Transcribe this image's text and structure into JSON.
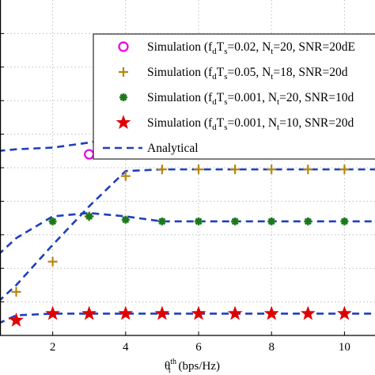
{
  "chart_data": {
    "type": "scatter",
    "xlabel": "θ_t^th (bps/Hz)",
    "xlabel_parts": {
      "base": "θ",
      "sup": "th",
      "sub": "t",
      "unit": " (bps/Hz)"
    },
    "x_ticks": [
      2,
      4,
      6,
      8,
      10
    ],
    "x_tick_labels": [
      "2",
      "4",
      "6",
      "8",
      "10"
    ],
    "xlim": [
      0.5,
      11
    ],
    "ylim": [
      0,
      10
    ],
    "y_gridlines": [
      1,
      2,
      3,
      4,
      5,
      6,
      7,
      8,
      9
    ],
    "x_gridlines": [
      2,
      4,
      6,
      8,
      10
    ],
    "grid": true,
    "legend_position": "top-right",
    "series": [
      {
        "name": "Simulation (f_dT_s=0.02, N_t=20, SNR=20dB)",
        "label_parts": [
          "Simulation (f",
          "d",
          "T",
          "s",
          "=0.02, N",
          "t",
          "=20, SNR=20dE"
        ],
        "marker": "circle-open",
        "color": "#e600e6",
        "x": [
          3,
          4,
          5,
          6,
          7,
          8,
          9,
          10
        ],
        "y": [
          5.4,
          5.7,
          6.05,
          6.1,
          6.1,
          6.1,
          6.1,
          6.1
        ]
      },
      {
        "name": "Simulation (f_dT_s=0.05, N_t=18, SNR=20dB)",
        "label_parts": [
          "Simulation (f",
          "d",
          "T",
          "s",
          "=0.05, N",
          "t",
          "=18, SNR=20d"
        ],
        "marker": "plus",
        "color": "#b8860b",
        "x": [
          1,
          2,
          3,
          4,
          5,
          6,
          7,
          8,
          9,
          10
        ],
        "y": [
          1.3,
          2.2,
          3.55,
          4.75,
          4.95,
          4.95,
          4.95,
          4.95,
          4.95,
          4.95
        ]
      },
      {
        "name": "Simulation (f_dT_s=0.001, N_t=20, SNR=10dB)",
        "label_parts": [
          "Simulation (f",
          "d",
          "T",
          "s",
          "=0.001, N",
          "t",
          "=20, SNR=10d"
        ],
        "marker": "asterisk",
        "color": "#1a7a1a",
        "x": [
          2,
          3,
          4,
          5,
          6,
          7,
          8,
          9,
          10
        ],
        "y": [
          3.4,
          3.55,
          3.45,
          3.4,
          3.4,
          3.4,
          3.4,
          3.4,
          3.4
        ]
      },
      {
        "name": "Simulation (f_dT_s=0.001, N_t=10, SNR=20dB)",
        "label_parts": [
          "Simulation (f",
          "d",
          "T",
          "s",
          "=0.001, N",
          "t",
          "=10, SNR=20d"
        ],
        "marker": "star",
        "color": "#e00000",
        "x": [
          1,
          2,
          3,
          4,
          5,
          6,
          7,
          8,
          9,
          10
        ],
        "y": [
          0.45,
          0.65,
          0.65,
          0.65,
          0.65,
          0.65,
          0.65,
          0.65,
          0.65,
          0.65
        ]
      }
    ],
    "analytical": {
      "name": "Analytical",
      "color": "#1f3fbf",
      "style": "dashed",
      "curves": [
        {
          "x": [
            0.5,
            1,
            2,
            3,
            4,
            5,
            6,
            7,
            8,
            9,
            10,
            11
          ],
          "y": [
            5.5,
            5.55,
            5.6,
            5.75,
            5.95,
            6.1,
            6.1,
            6.1,
            6.1,
            6.1,
            6.1,
            6.1
          ]
        },
        {
          "x": [
            0.5,
            1,
            2,
            3,
            4,
            5,
            6,
            7,
            8,
            9,
            10,
            11
          ],
          "y": [
            1.0,
            1.5,
            2.7,
            3.85,
            4.9,
            4.95,
            4.95,
            4.95,
            4.95,
            4.95,
            4.95,
            4.95
          ]
        },
        {
          "x": [
            0.5,
            1,
            2,
            3,
            4,
            5,
            6,
            7,
            8,
            9,
            10,
            11
          ],
          "y": [
            2.4,
            2.9,
            3.55,
            3.65,
            3.55,
            3.4,
            3.4,
            3.4,
            3.4,
            3.4,
            3.4,
            3.4
          ]
        },
        {
          "x": [
            0.5,
            1,
            2,
            3,
            4,
            5,
            6,
            7,
            8,
            9,
            10,
            11
          ],
          "y": [
            0.35,
            0.6,
            0.65,
            0.65,
            0.65,
            0.65,
            0.65,
            0.65,
            0.65,
            0.65,
            0.65,
            0.65
          ]
        }
      ]
    }
  }
}
